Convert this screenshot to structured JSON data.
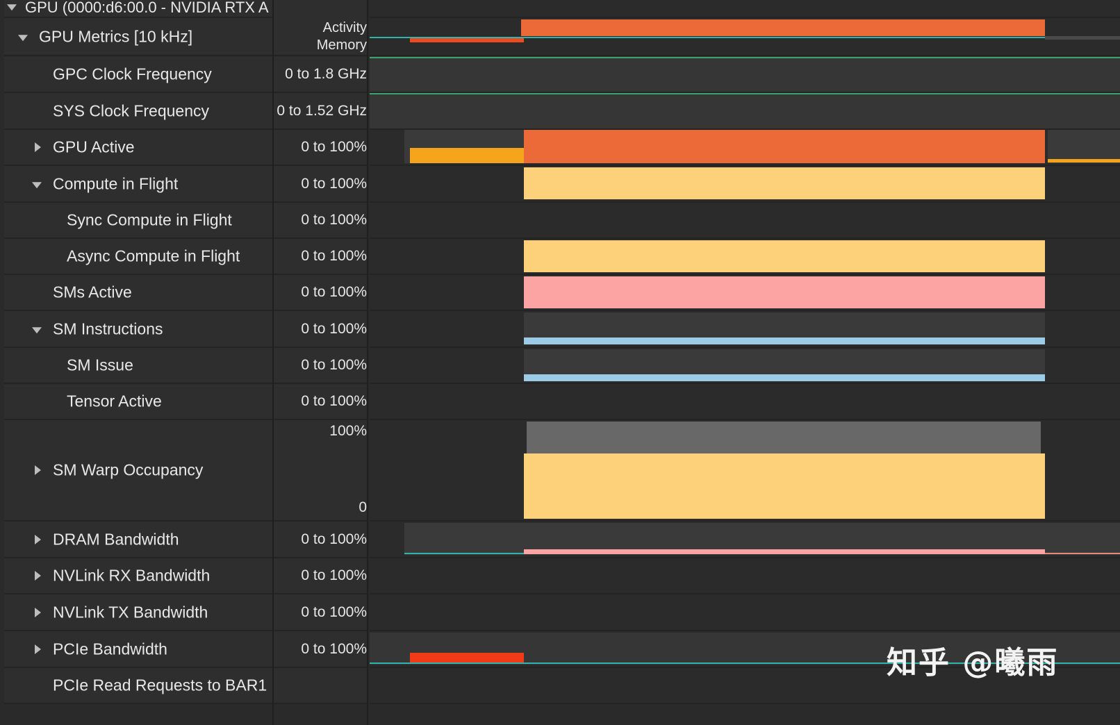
{
  "window_title": "GPU (0000:d6:00.0 - NVIDIA RTX A",
  "rows": [
    {
      "name": "GPU Metrics [10 kHz]",
      "range": "",
      "range_lines": [
        "Activity",
        "Memory"
      ],
      "expand": "down"
    },
    {
      "name": "GPC Clock Frequency",
      "range": "0 to 1.8 GHz",
      "expand": "none"
    },
    {
      "name": "SYS Clock Frequency",
      "range": "0 to 1.52 GHz",
      "expand": "none"
    },
    {
      "name": "GPU Active",
      "range": "0 to 100%",
      "expand": "right"
    },
    {
      "name": "Compute in Flight",
      "range": "0 to 100%",
      "expand": "down"
    },
    {
      "name": "Sync Compute in Flight",
      "range": "0 to 100%",
      "expand": "none"
    },
    {
      "name": "Async Compute in Flight",
      "range": "0 to 100%",
      "expand": "none"
    },
    {
      "name": "SMs Active",
      "range": "0 to 100%",
      "expand": "none"
    },
    {
      "name": "SM Instructions",
      "range": "0 to 100%",
      "expand": "down"
    },
    {
      "name": "SM Issue",
      "range": "0 to 100%",
      "expand": "none"
    },
    {
      "name": "Tensor Active",
      "range": "0 to 100%",
      "expand": "none"
    },
    {
      "name": "SM Warp Occupancy",
      "range": "",
      "range_top": "100%",
      "range_bottom": "0",
      "expand": "right"
    },
    {
      "name": "DRAM Bandwidth",
      "range": "0 to 100%",
      "expand": "right"
    },
    {
      "name": "NVLink RX Bandwidth",
      "range": "0 to 100%",
      "expand": "right"
    },
    {
      "name": "NVLink TX Bandwidth",
      "range": "0 to 100%",
      "expand": "right"
    },
    {
      "name": "PCIe Bandwidth",
      "range": "0 to 100%",
      "expand": "right"
    },
    {
      "name": "PCIe Read Requests to BAR1",
      "range": "",
      "expand": "none"
    }
  ],
  "activity": {
    "gpu_active_pct": 100,
    "compute_in_flight_pct": 100,
    "async_compute_in_flight_pct": 100,
    "sms_active_pct": 100,
    "sm_instructions_pct": 18,
    "sm_issue_pct": 18,
    "warp_occupancy_pct": 65,
    "dram_bandwidth_pct": 12
  },
  "colors": {
    "activity_orange": "#ec6a37",
    "gpu_active_yellow": "#f5a51b",
    "compute_yellow": "#fdd07a",
    "sms_pink": "#fca3a3",
    "sm_blue": "#9ccbe6",
    "gray_band": "#686868",
    "teal_line": "#2fb5ad",
    "green_line": "#3aa36e",
    "pcie_red": "#ef3b17"
  },
  "watermark": "知乎 @曦雨"
}
